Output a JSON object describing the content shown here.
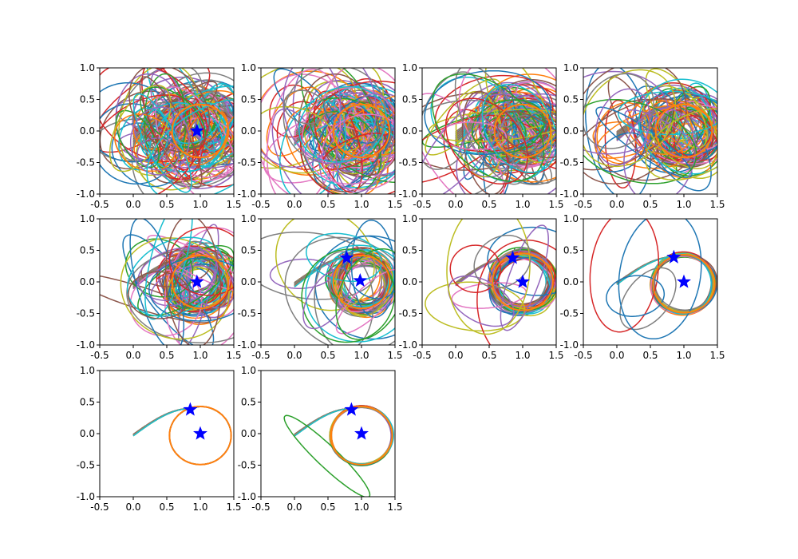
{
  "palette": [
    "#1f77b4",
    "#ff7f0e",
    "#2ca02c",
    "#d62728",
    "#9467bd",
    "#8c564b",
    "#e377c2",
    "#7f7f7f",
    "#bcbd22",
    "#17becf"
  ],
  "star_color": "#0000ff",
  "chart_data": [
    {
      "type": "line",
      "panel": 1,
      "xlim": [
        -0.5,
        1.5
      ],
      "ylim": [
        -1.0,
        1.0
      ],
      "xticks": [
        "-0.5",
        "0.0",
        "0.5",
        "1.0",
        "1.5"
      ],
      "yticks": [
        "1.0",
        "0.5",
        "0.0",
        "-0.5",
        "-1.0"
      ],
      "stars": [
        {
          "x": 0.95,
          "y": 0.0
        }
      ],
      "circle": {
        "cx": 1.0,
        "cy": 0.0,
        "r": 0.42
      },
      "trajectory_count": 60,
      "chaos": 1.0,
      "grid": false
    },
    {
      "type": "line",
      "panel": 2,
      "xlim": [
        -0.5,
        1.5
      ],
      "ylim": [
        -1.0,
        1.0
      ],
      "xticks": [
        "-0.5",
        "0.0",
        "0.5",
        "1.0",
        "1.5"
      ],
      "yticks": [
        "1.0",
        "0.5",
        "0.0",
        "-0.5",
        "-1.0"
      ],
      "stars": [],
      "circle": {
        "cx": 1.0,
        "cy": 0.0,
        "r": 0.42
      },
      "trajectory_count": 60,
      "chaos": 0.95,
      "grid": false
    },
    {
      "type": "line",
      "panel": 3,
      "xlim": [
        -0.5,
        1.5
      ],
      "ylim": [
        -1.0,
        1.0
      ],
      "xticks": [
        "-0.5",
        "0.0",
        "0.5",
        "1.0",
        "1.5"
      ],
      "yticks": [
        "1.0",
        "0.5",
        "0.0",
        "-0.5",
        "-1.0"
      ],
      "stars": [],
      "circle": {
        "cx": 1.0,
        "cy": 0.0,
        "r": 0.42
      },
      "trajectory_count": 60,
      "chaos": 0.8,
      "grid": false
    },
    {
      "type": "line",
      "panel": 4,
      "xlim": [
        -0.5,
        1.5
      ],
      "ylim": [
        -1.0,
        1.0
      ],
      "xticks": [
        "-0.5",
        "0.0",
        "0.5",
        "1.0",
        "1.5"
      ],
      "yticks": [
        "1.0",
        "0.5",
        "0.0",
        "-0.5",
        "-1.0"
      ],
      "stars": [],
      "circle": {
        "cx": 1.0,
        "cy": 0.0,
        "r": 0.42
      },
      "trajectory_count": 55,
      "chaos": 0.6,
      "grid": false
    },
    {
      "type": "line",
      "panel": 5,
      "xlim": [
        -0.5,
        1.5
      ],
      "ylim": [
        -1.0,
        1.0
      ],
      "xticks": [
        "-0.5",
        "0.0",
        "0.5",
        "1.0",
        "1.5"
      ],
      "yticks": [
        "1.0",
        "0.5",
        "0.0",
        "-0.5",
        "-1.0"
      ],
      "stars": [
        {
          "x": 0.95,
          "y": 0.0
        }
      ],
      "circle": {
        "cx": 1.0,
        "cy": 0.0,
        "r": 0.42
      },
      "trajectory_count": 45,
      "chaos": 0.45,
      "grid": false
    },
    {
      "type": "line",
      "panel": 6,
      "xlim": [
        -0.5,
        1.5
      ],
      "ylim": [
        -1.0,
        1.0
      ],
      "xticks": [
        "-0.5",
        "0.0",
        "0.5",
        "1.0",
        "1.5"
      ],
      "yticks": [
        "1.0",
        "0.5",
        "0.0",
        "-0.5",
        "-1.0"
      ],
      "stars": [
        {
          "x": 0.78,
          "y": 0.38
        },
        {
          "x": 0.98,
          "y": 0.02
        }
      ],
      "circle": {
        "cx": 1.0,
        "cy": 0.0,
        "r": 0.42
      },
      "trajectory_count": 40,
      "chaos": 0.3,
      "grid": false
    },
    {
      "type": "line",
      "panel": 7,
      "xlim": [
        -0.5,
        1.5
      ],
      "ylim": [
        -1.0,
        1.0
      ],
      "xticks": [
        "-0.5",
        "0.0",
        "0.5",
        "1.0",
        "1.5"
      ],
      "yticks": [
        "1.0",
        "0.5",
        "0.0",
        "-0.5",
        "-1.0"
      ],
      "stars": [
        {
          "x": 0.85,
          "y": 0.38
        },
        {
          "x": 1.0,
          "y": 0.0
        }
      ],
      "circle": {
        "cx": 1.0,
        "cy": 0.0,
        "r": 0.45
      },
      "trajectory_count": 35,
      "chaos": 0.2,
      "grid": false
    },
    {
      "type": "line",
      "panel": 8,
      "xlim": [
        -0.5,
        1.5
      ],
      "ylim": [
        -1.0,
        1.0
      ],
      "xticks": [
        "-0.5",
        "0.0",
        "0.5",
        "1.0",
        "1.5"
      ],
      "yticks": [
        "1.0",
        "0.5",
        "0.0",
        "-0.5",
        "-1.0"
      ],
      "stars": [
        {
          "x": 0.85,
          "y": 0.39
        },
        {
          "x": 1.0,
          "y": 0.0
        }
      ],
      "circle": {
        "cx": 1.0,
        "cy": -0.03,
        "r": 0.46
      },
      "trajectory_count": 30,
      "chaos": 0.08,
      "grid": false
    },
    {
      "type": "line",
      "panel": 9,
      "xlim": [
        -0.5,
        1.5
      ],
      "ylim": [
        -1.0,
        1.0
      ],
      "xticks": [
        "-0.5",
        "0.0",
        "0.5",
        "1.0",
        "1.5"
      ],
      "yticks": [
        "1.0",
        "0.5",
        "0.0",
        "-0.5",
        "-1.0"
      ],
      "stars": [
        {
          "x": 0.85,
          "y": 0.38
        },
        {
          "x": 1.0,
          "y": 0.0
        }
      ],
      "circle": {
        "cx": 1.0,
        "cy": -0.03,
        "r": 0.46
      },
      "trajectory_count": 30,
      "chaos": 0.0,
      "grid": false
    },
    {
      "type": "line",
      "panel": 10,
      "xlim": [
        -0.5,
        1.5
      ],
      "ylim": [
        -1.0,
        1.0
      ],
      "xticks": [
        "-0.5",
        "0.0",
        "0.5",
        "1.0",
        "1.5"
      ],
      "yticks": [
        "1.0",
        "0.5",
        "0.0",
        "-0.5",
        "-1.0"
      ],
      "stars": [
        {
          "x": 0.85,
          "y": 0.38
        },
        {
          "x": 1.0,
          "y": 0.0
        }
      ],
      "circle": {
        "cx": 1.0,
        "cy": -0.03,
        "r": 0.46
      },
      "trajectory_count": 30,
      "chaos": 0.03,
      "grid": false
    }
  ]
}
